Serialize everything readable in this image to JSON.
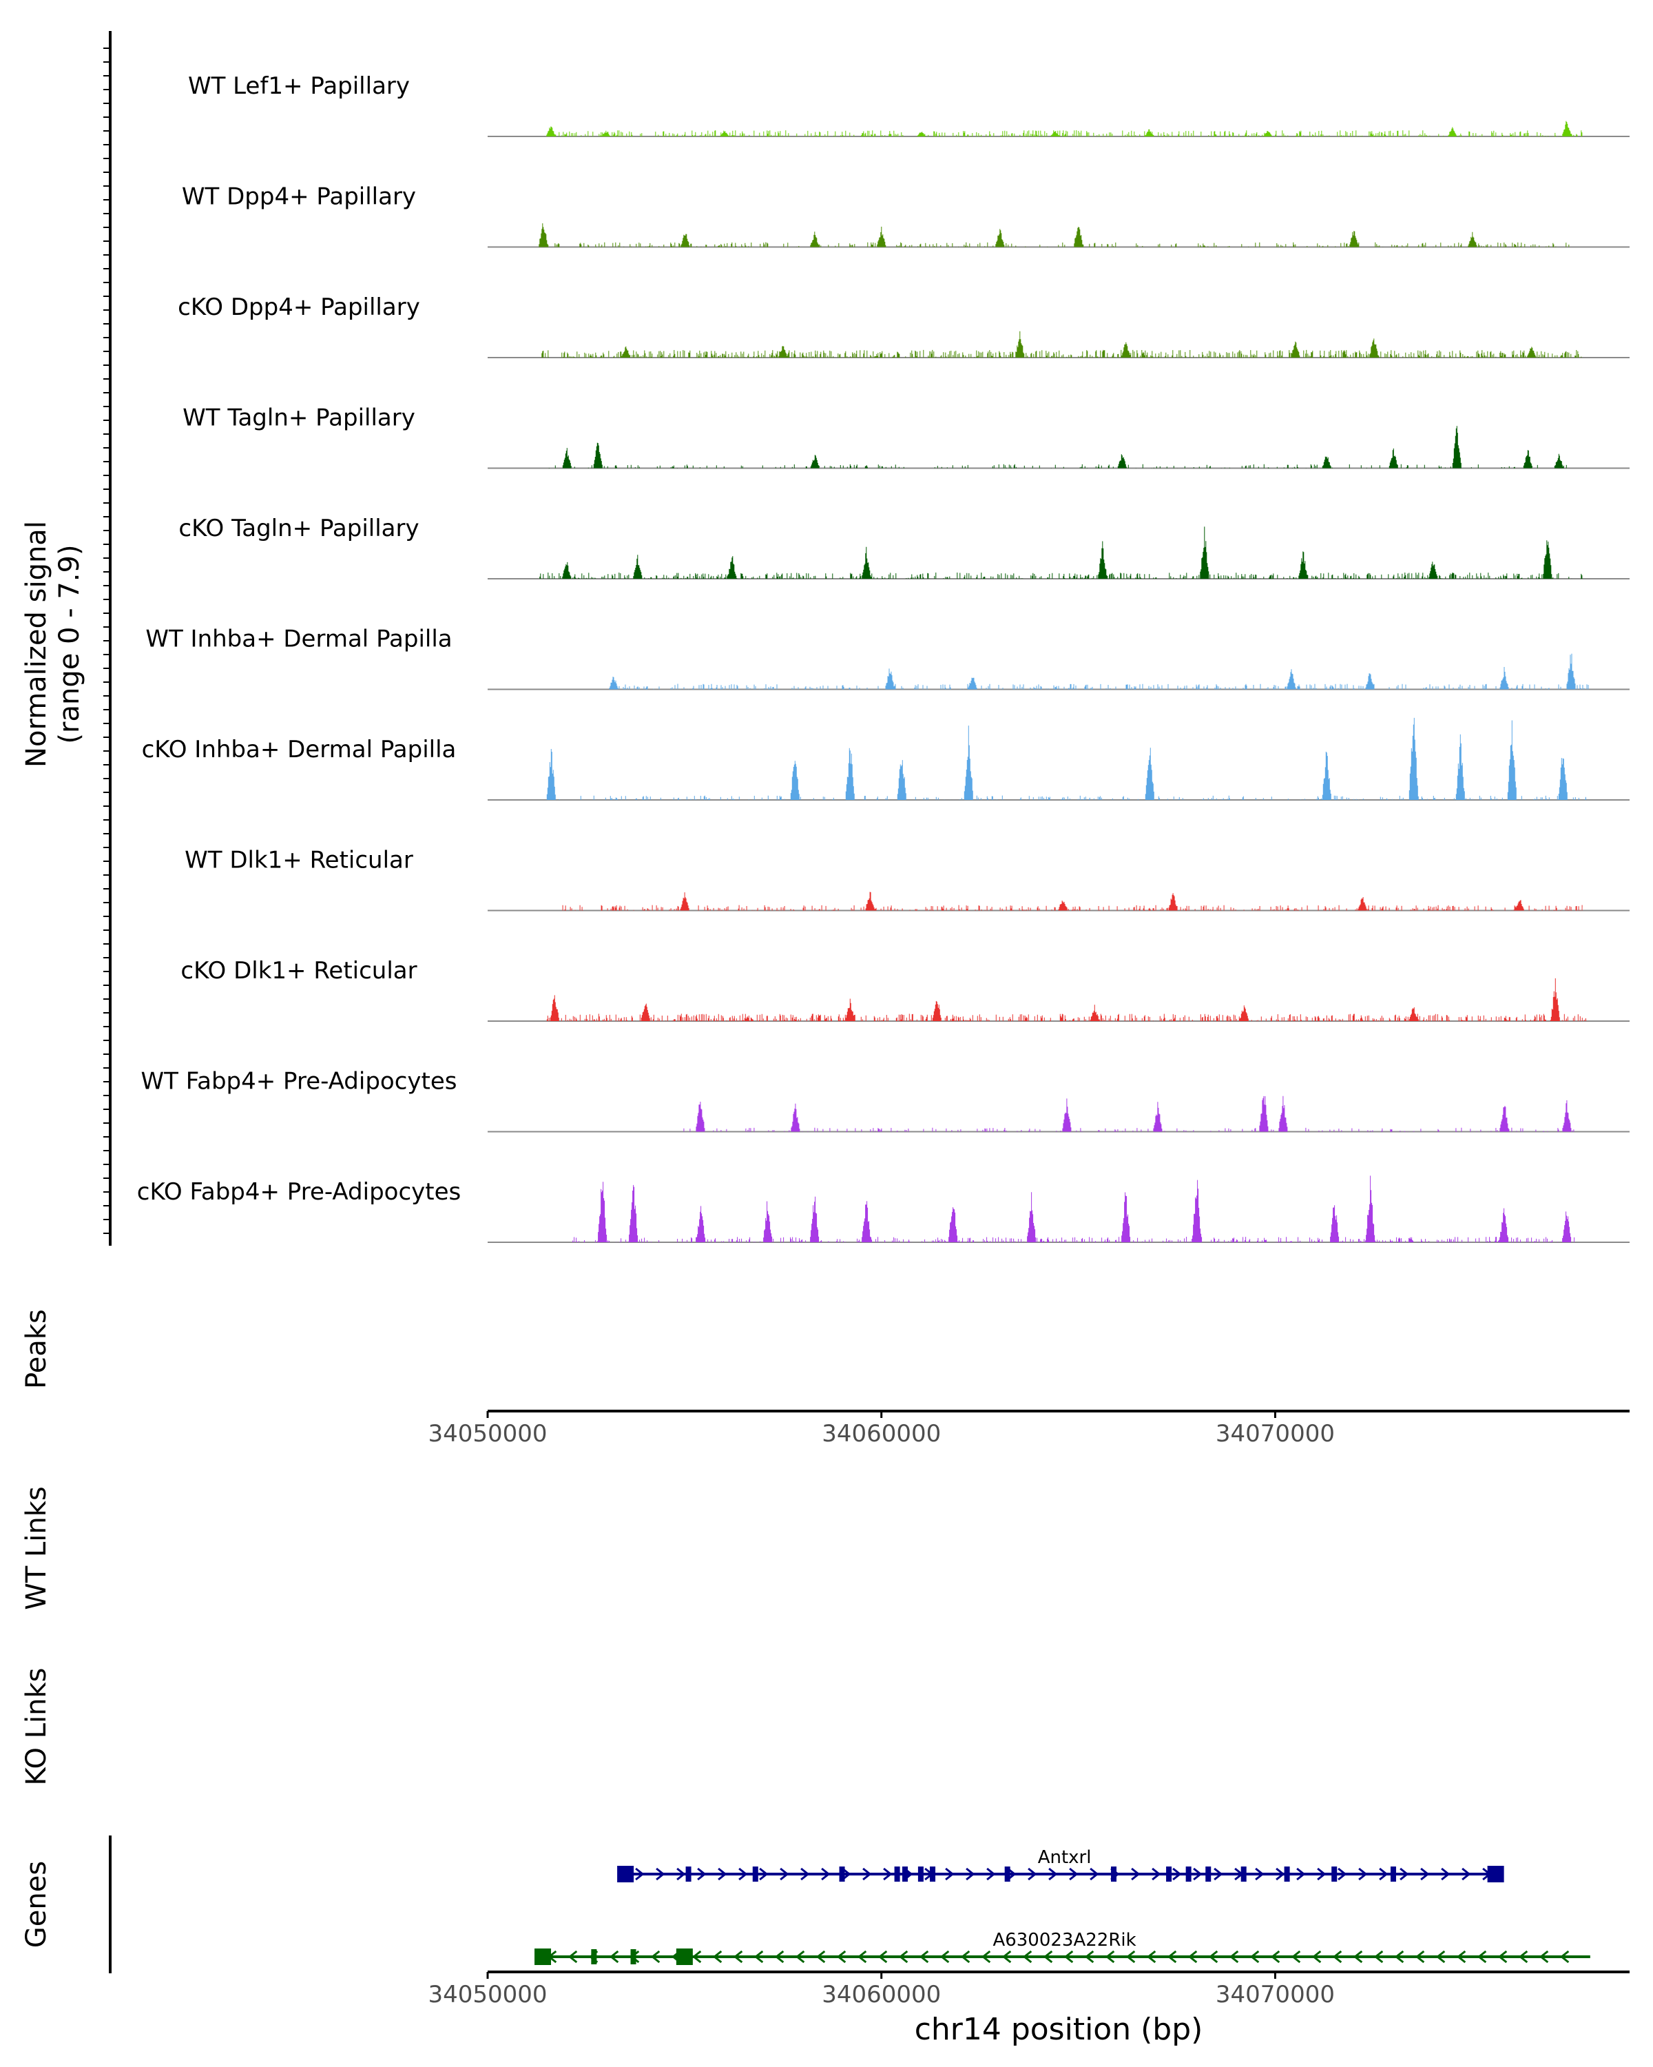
{
  "chart_data": {
    "type": "area",
    "title": "",
    "xlabel": "chr14 position (bp)",
    "xlim": [
      34050000,
      34079000
    ],
    "x_ticks": [
      34050000,
      34060000,
      34070000
    ],
    "x_tick_labels": [
      "34050000",
      "34060000",
      "34070000"
    ],
    "signal_axis": {
      "label_line1": "Normalized signal",
      "label_line2": "(range 0 - 7.9)",
      "ylim": [
        0,
        7.9
      ]
    },
    "tracks": [
      {
        "name": "WT Lef1+ Papillary",
        "color": "#66cc00",
        "range": [
          34051300,
          34077800
        ],
        "density": 0.55,
        "peaks": [
          [
            34051600,
            0.6
          ],
          [
            34053000,
            0.3
          ],
          [
            34056000,
            0.35
          ],
          [
            34061000,
            0.3
          ],
          [
            34064400,
            0.35
          ],
          [
            34066800,
            0.4
          ],
          [
            34069800,
            0.35
          ],
          [
            34074500,
            0.45
          ],
          [
            34077400,
            0.9
          ]
        ]
      },
      {
        "name": "WT Dpp4+ Papillary",
        "color": "#4a8a00",
        "range": [
          34051300,
          34077800
        ],
        "density": 0.35,
        "peaks": [
          [
            34051400,
            1.5
          ],
          [
            34055000,
            0.9
          ],
          [
            34058300,
            0.8
          ],
          [
            34060000,
            1.0
          ],
          [
            34063000,
            1.0
          ],
          [
            34065000,
            1.5
          ],
          [
            34072000,
            1.0
          ],
          [
            34075000,
            0.8
          ]
        ]
      },
      {
        "name": "cKO Dpp4+ Papillary",
        "color": "#4a8a00",
        "range": [
          34051300,
          34077800
        ],
        "density": 0.75,
        "peaks": [
          [
            34053500,
            0.6
          ],
          [
            34057500,
            0.7
          ],
          [
            34063500,
            1.4
          ],
          [
            34066200,
            0.9
          ],
          [
            34070500,
            1.0
          ],
          [
            34072500,
            1.2
          ],
          [
            34076500,
            0.7
          ]
        ]
      },
      {
        "name": "WT Tagln+ Papillary",
        "color": "#005a00",
        "range": [
          34051500,
          34077500
        ],
        "density": 0.25,
        "peaks": [
          [
            34052000,
            1.0
          ],
          [
            34052800,
            1.6
          ],
          [
            34058300,
            0.7
          ],
          [
            34066100,
            0.8
          ],
          [
            34071300,
            0.8
          ],
          [
            34073000,
            1.1
          ],
          [
            34074600,
            2.4
          ],
          [
            34076400,
            1.0
          ],
          [
            34077200,
            0.8
          ]
        ]
      },
      {
        "name": "cKO Tagln+ Papillary",
        "color": "#005a00",
        "range": [
          34051300,
          34077800
        ],
        "density": 0.55,
        "peaks": [
          [
            34052000,
            1.0
          ],
          [
            34053800,
            1.2
          ],
          [
            34056200,
            1.3
          ],
          [
            34059600,
            1.6
          ],
          [
            34065600,
            1.8
          ],
          [
            34068200,
            2.6
          ],
          [
            34070700,
            1.5
          ],
          [
            34074000,
            1.0
          ],
          [
            34076900,
            2.4
          ]
        ]
      },
      {
        "name": "WT Inhba+ Dermal Papilla",
        "color": "#5aa7e6",
        "range": [
          34053000,
          34078000
        ],
        "density": 0.45,
        "peaks": [
          [
            34053200,
            0.8
          ],
          [
            34060200,
            1.2
          ],
          [
            34062300,
            0.8
          ],
          [
            34070400,
            1.1
          ],
          [
            34072400,
            0.9
          ],
          [
            34075800,
            1.1
          ],
          [
            34077500,
            2.0
          ]
        ]
      },
      {
        "name": "cKO Inhba+ Dermal Papilla",
        "color": "#5aa7e6",
        "range": [
          34051500,
          34077900
        ],
        "density": 0.3,
        "peaks": [
          [
            34051600,
            2.8
          ],
          [
            34057800,
            2.6
          ],
          [
            34059200,
            3.1
          ],
          [
            34060500,
            2.6
          ],
          [
            34062200,
            3.8
          ],
          [
            34066800,
            3.0
          ],
          [
            34071300,
            2.8
          ],
          [
            34073500,
            4.8
          ],
          [
            34074700,
            3.2
          ],
          [
            34076000,
            4.3
          ],
          [
            34077300,
            3.0
          ]
        ]
      },
      {
        "name": "WT Dlk1+ Reticular",
        "color": "#e8312e",
        "range": [
          34051900,
          34077800
        ],
        "density": 0.45,
        "peaks": [
          [
            34055000,
            0.9
          ],
          [
            34059700,
            1.1
          ],
          [
            34064600,
            0.7
          ],
          [
            34067400,
            1.0
          ],
          [
            34072200,
            0.8
          ],
          [
            34076200,
            0.7
          ]
        ]
      },
      {
        "name": "cKO Dlk1+ Reticular",
        "color": "#e8312e",
        "range": [
          34051500,
          34077900
        ],
        "density": 0.7,
        "peaks": [
          [
            34051700,
            1.5
          ],
          [
            34054000,
            1.2
          ],
          [
            34059200,
            1.1
          ],
          [
            34061400,
            1.4
          ],
          [
            34065400,
            0.8
          ],
          [
            34069200,
            0.9
          ],
          [
            34073500,
            0.8
          ],
          [
            34077100,
            2.1
          ]
        ]
      },
      {
        "name": "WT Fabp4+ Pre-Adipocytes",
        "color": "#a83be6",
        "range": [
          34054800,
          34077600
        ],
        "density": 0.25,
        "peaks": [
          [
            34055400,
            1.9
          ],
          [
            34057800,
            1.5
          ],
          [
            34064700,
            1.7
          ],
          [
            34067000,
            1.5
          ],
          [
            34069700,
            2.4
          ],
          [
            34070200,
            1.8
          ],
          [
            34075800,
            1.7
          ],
          [
            34077400,
            1.6
          ]
        ]
      },
      {
        "name": "cKO Fabp4+ Pre-Adipocytes",
        "color": "#a83be6",
        "range": [
          34052100,
          34077600
        ],
        "density": 0.45,
        "peaks": [
          [
            34052900,
            3.7
          ],
          [
            34053700,
            3.6
          ],
          [
            34055400,
            2.0
          ],
          [
            34057100,
            2.3
          ],
          [
            34058300,
            2.6
          ],
          [
            34059600,
            2.4
          ],
          [
            34061800,
            2.5
          ],
          [
            34063800,
            2.4
          ],
          [
            34066200,
            2.8
          ],
          [
            34068000,
            3.6
          ],
          [
            34071500,
            2.4
          ],
          [
            34072400,
            3.2
          ],
          [
            34075800,
            1.8
          ],
          [
            34077400,
            1.8
          ]
        ]
      }
    ],
    "empty_tracks": [
      "Peaks",
      "WT Links",
      "KO Links"
    ],
    "genes_track_label": "Genes",
    "genes": [
      {
        "name": "Antxrl",
        "strand": "+",
        "start": 34053500,
        "end": 34075800,
        "color": "#00008b",
        "exons": [
          34053500,
          34055100,
          34056800,
          34059000,
          34060400,
          34060600,
          34061000,
          34061300,
          34063200,
          34065900,
          34067300,
          34067800,
          34068300,
          34069200,
          34070300,
          34071500,
          34073000,
          34075600
        ]
      },
      {
        "name": "A630023A22Rik",
        "strand": "-",
        "start": 34051300,
        "end": 34078000,
        "color": "#006400",
        "exons": [
          34051400,
          34052700,
          34053700,
          34055000
        ]
      }
    ]
  }
}
